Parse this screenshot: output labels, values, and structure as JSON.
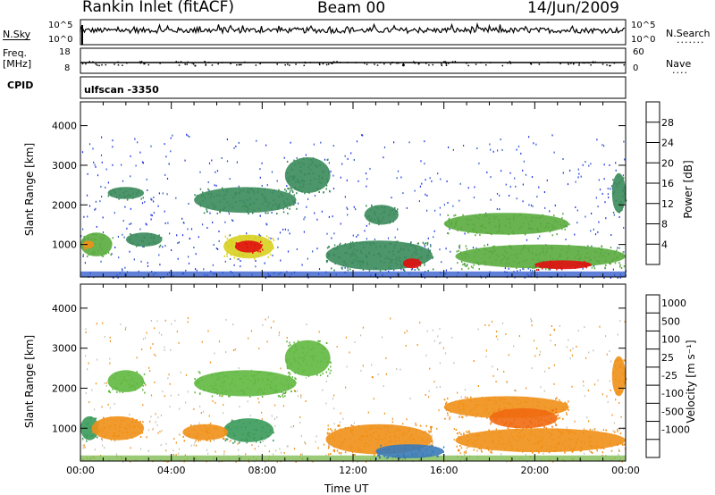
{
  "header": {
    "station": "Rankin Inlet (fitACF)",
    "beam": "Beam 00",
    "date": "14/Jun/2009"
  },
  "panels": {
    "nsky_label": "N.Sky",
    "nsky_ticks": [
      "10^5",
      "10^0"
    ],
    "nsearch_label": "N.Search",
    "nsearch_ticks": [
      "10^5",
      "10^0"
    ],
    "freq_label": "Freq.",
    "freq_unit": "[MHz]",
    "freq_ticks": [
      "18",
      "8"
    ],
    "nave_label": "Nave",
    "nave_ticks": [
      "60",
      "0"
    ],
    "cpid_label": "CPID",
    "cpid_value": "ulfscan -3350"
  },
  "colors": {
    "power": [
      "#1c2ee8",
      "#2a55c8",
      "#3a8a5a",
      "#5aab3e",
      "#d8d020",
      "#f09018",
      "#e84818",
      "#e01010"
    ],
    "velocity": [
      "#2040b0",
      "#3a7ab8",
      "#3a9a5a",
      "#60b840",
      "#c0c0b8",
      "#f09018",
      "#f06a10",
      "#e83010",
      "#e01010"
    ]
  },
  "chart_data": [
    {
      "type": "heatmap",
      "name": "power",
      "ylabel": "Slant Range [km]",
      "xlabel": "Time UT",
      "x_ticks": [
        "00:00",
        "04:00",
        "08:00",
        "12:00",
        "16:00",
        "20:00",
        "00:00"
      ],
      "xlim_hours": [
        0,
        24
      ],
      "ylim": [
        180,
        4600
      ],
      "y_ticks": [
        1000,
        2000,
        3000,
        4000
      ],
      "colorbar_label": "Power [dB]",
      "colorbar_ticks": [
        4,
        8,
        12,
        16,
        20,
        24,
        28
      ],
      "colorbar_range": [
        0,
        32
      ],
      "regions": [
        {
          "t0": 0.0,
          "t1": 1.4,
          "r0": 700,
          "r1": 1300,
          "level": 12
        },
        {
          "t0": 0.1,
          "t1": 0.6,
          "r0": 900,
          "r1": 1100,
          "level": 20
        },
        {
          "t0": 1.2,
          "t1": 2.8,
          "r0": 2150,
          "r1": 2450,
          "level": 8
        },
        {
          "t0": 2.0,
          "t1": 3.6,
          "r0": 950,
          "r1": 1300,
          "level": 10
        },
        {
          "t0": 5.0,
          "t1": 9.5,
          "r0": 1800,
          "r1": 2450,
          "level": 10
        },
        {
          "t0": 9.0,
          "t1": 11.0,
          "r0": 2300,
          "r1": 3200,
          "level": 8
        },
        {
          "t0": 6.3,
          "t1": 8.5,
          "r0": 650,
          "r1": 1250,
          "level": 18
        },
        {
          "t0": 6.8,
          "t1": 8.0,
          "r0": 800,
          "r1": 1100,
          "level": 28
        },
        {
          "t0": 10.8,
          "t1": 15.5,
          "r0": 350,
          "r1": 1100,
          "level": 10
        },
        {
          "t0": 14.2,
          "t1": 15.0,
          "r0": 400,
          "r1": 650,
          "level": 28
        },
        {
          "t0": 12.5,
          "t1": 14.0,
          "r0": 1500,
          "r1": 2000,
          "level": 8
        },
        {
          "t0": 16.0,
          "t1": 21.5,
          "r0": 1250,
          "r1": 1800,
          "level": 12
        },
        {
          "t0": 16.5,
          "t1": 24.0,
          "r0": 400,
          "r1": 1000,
          "level": 14
        },
        {
          "t0": 20.0,
          "t1": 22.5,
          "r0": 380,
          "r1": 600,
          "level": 28
        },
        {
          "t0": 23.4,
          "t1": 24.0,
          "r0": 1800,
          "r1": 2800,
          "level": 8
        }
      ]
    },
    {
      "type": "heatmap",
      "name": "velocity",
      "ylabel": "Slant Range [km]",
      "xlabel": "Time UT",
      "x_ticks": [
        "00:00",
        "04:00",
        "08:00",
        "12:00",
        "16:00",
        "20:00",
        "00:00"
      ],
      "xlim_hours": [
        0,
        24
      ],
      "ylim": [
        180,
        4600
      ],
      "y_ticks": [
        1000,
        2000,
        3000,
        4000
      ],
      "colorbar_label": "Velocity [m s⁻¹]",
      "colorbar_ticks": [
        "1000",
        "500",
        "100",
        "25",
        "-25",
        "-100",
        "-500",
        "-1000"
      ],
      "regions": [
        {
          "t0": 0.0,
          "t1": 0.8,
          "r0": 700,
          "r1": 1300,
          "level": "100"
        },
        {
          "t0": 0.5,
          "t1": 2.8,
          "r0": 700,
          "r1": 1300,
          "level": "-100"
        },
        {
          "t0": 1.2,
          "t1": 2.8,
          "r0": 1900,
          "r1": 2450,
          "level": "25"
        },
        {
          "t0": 5.0,
          "t1": 9.5,
          "r0": 1800,
          "r1": 2450,
          "level": "25"
        },
        {
          "t0": 9.0,
          "t1": 11.0,
          "r0": 2300,
          "r1": 3200,
          "level": "25"
        },
        {
          "t0": 6.3,
          "t1": 8.5,
          "r0": 650,
          "r1": 1250,
          "level": "100"
        },
        {
          "t0": 4.5,
          "t1": 6.5,
          "r0": 700,
          "r1": 1100,
          "level": "-100"
        },
        {
          "t0": 10.8,
          "t1": 15.5,
          "r0": 350,
          "r1": 1100,
          "level": "-100"
        },
        {
          "t0": 13.0,
          "t1": 16.0,
          "r0": 250,
          "r1": 600,
          "level": "500"
        },
        {
          "t0": 16.0,
          "t1": 21.5,
          "r0": 1250,
          "r1": 1800,
          "level": "-100"
        },
        {
          "t0": 18.0,
          "t1": 21.0,
          "r0": 1000,
          "r1": 1500,
          "level": "-500"
        },
        {
          "t0": 16.5,
          "t1": 24.0,
          "r0": 400,
          "r1": 1000,
          "level": "-100"
        },
        {
          "t0": 23.4,
          "t1": 24.0,
          "r0": 1800,
          "r1": 2800,
          "level": "-100"
        }
      ]
    }
  ]
}
